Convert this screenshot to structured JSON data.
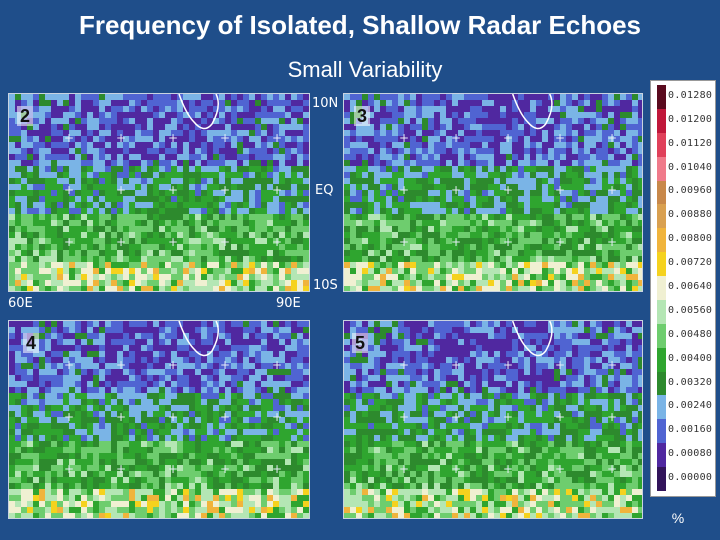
{
  "title": "Frequency of Isolated, Shallow Radar Echoes",
  "subtitle": "Small Variability",
  "panels": [
    {
      "number": "2"
    },
    {
      "number": "3"
    },
    {
      "number": "4"
    },
    {
      "number": "5"
    }
  ],
  "latitude_labels": {
    "north": "10N",
    "equator": "EQ",
    "south": "10S"
  },
  "longitude_labels": {
    "west": "60E",
    "east": "90E"
  },
  "colorbar": {
    "unit": "%",
    "ticks": [
      "0.01280",
      "0.01200",
      "0.01120",
      "0.01040",
      "0.00960",
      "0.00880",
      "0.00800",
      "0.00720",
      "0.00640",
      "0.00560",
      "0.00480",
      "0.00400",
      "0.00320",
      "0.00240",
      "0.00160",
      "0.00080",
      "0.00000"
    ],
    "colors": [
      "#5a0a1e",
      "#c0173a",
      "#e0405a",
      "#f07a8a",
      "#c8884a",
      "#d9a050",
      "#f0b43c",
      "#f5d21e",
      "#f0f0d2",
      "#b4e6b4",
      "#6ecd6e",
      "#2fa52f",
      "#2d8a2d",
      "#7ab4e6",
      "#5064d2",
      "#5028a0",
      "#32145a"
    ]
  }
}
